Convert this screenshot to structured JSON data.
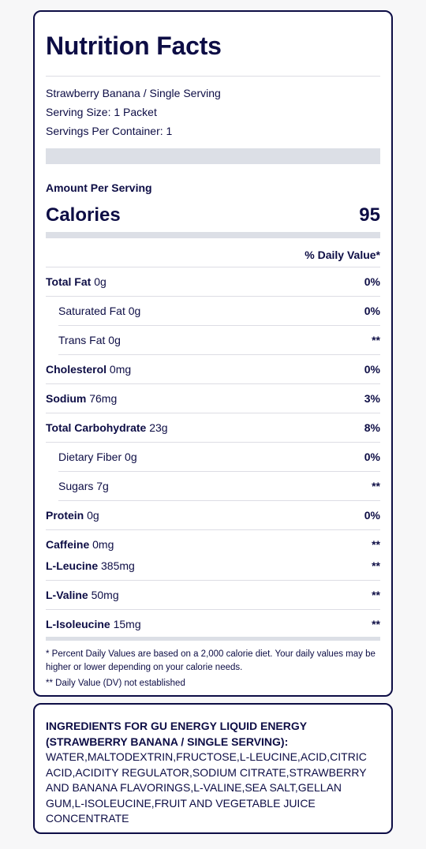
{
  "label": {
    "title": "Nutrition Facts",
    "product_line": "Strawberry Banana / Single Serving",
    "serving_size": "Serving Size: 1 Packet",
    "servings_per_container": "Servings Per Container: 1",
    "amount_per_serving": "Amount Per Serving",
    "calories_label": "Calories",
    "calories_value": "95",
    "dv_header": "% Daily Value*"
  },
  "nutrients": [
    {
      "name": "Total Fat",
      "amount": "0g",
      "dv": "0%"
    },
    {
      "name": "Saturated Fat",
      "amount": "0g",
      "dv": "0%"
    },
    {
      "name": "Trans Fat",
      "amount": "0g",
      "dv": "**"
    },
    {
      "name": "Cholesterol",
      "amount": "0mg",
      "dv": "0%"
    },
    {
      "name": "Sodium",
      "amount": "76mg",
      "dv": "3%"
    },
    {
      "name": "Total Carbohydrate",
      "amount": "23g",
      "dv": "8%"
    },
    {
      "name": "Dietary Fiber",
      "amount": "0g",
      "dv": "0%"
    },
    {
      "name": "Sugars",
      "amount": "7g",
      "dv": "**"
    },
    {
      "name": "Protein",
      "amount": "0g",
      "dv": "0%"
    },
    {
      "name": "Caffeine",
      "amount": "0mg",
      "dv": "**"
    },
    {
      "name": "L-Leucine",
      "amount": "385mg",
      "dv": "**"
    },
    {
      "name": "L-Valine",
      "amount": "50mg",
      "dv": "**"
    },
    {
      "name": "L-Isoleucine",
      "amount": "15mg",
      "dv": "**"
    }
  ],
  "footnotes": {
    "dv_note": "* Percent Daily Values are based on a 2,000 calorie diet. Your daily values may be higher or lower depending on your calorie needs.",
    "not_established": "** Daily Value (DV) not established"
  },
  "ingredients": {
    "title": "INGREDIENTS FOR GU ENERGY LIQUID ENERGY (STRAWBERRY BANANA / SINGLE SERVING):",
    "text": "WATER,MALTODEXTRIN,FRUCTOSE,L-LEUCINE,ACID,CITRIC ACID,ACIDITY REGULATOR,SODIUM CITRATE,STRAWBERRY AND BANANA FLAVORINGS,L-VALINE,SEA SALT,GELLAN GUM,L-ISOLEUCINE,FRUIT AND VEGETABLE JUICE CONCENTRATE"
  },
  "colors": {
    "text": "#0d0d45",
    "bar": "#dcdfe6",
    "border": "#0d0d45"
  }
}
